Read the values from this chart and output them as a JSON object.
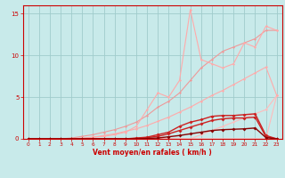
{
  "xlabel": "Vent moyen/en rafales ( km/h )",
  "x": [
    0,
    1,
    2,
    3,
    4,
    5,
    6,
    7,
    8,
    9,
    10,
    11,
    12,
    13,
    14,
    15,
    16,
    17,
    18,
    19,
    20,
    21,
    22,
    23
  ],
  "lines": [
    {
      "y": [
        0.0,
        0.0,
        0.0,
        0.0,
        0.0,
        0.0,
        0.0,
        0.0,
        0.0,
        0.0,
        0.0,
        0.0,
        0.0,
        0.0,
        0.0,
        0.0,
        0.0,
        0.0,
        0.0,
        0.0,
        0.0,
        0.0,
        0.0,
        5.2
      ],
      "color": "#ffbbbb",
      "lw": 0.8,
      "ms": 1.5
    },
    {
      "y": [
        0.0,
        0.0,
        0.0,
        0.0,
        0.0,
        0.0,
        0.0,
        0.0,
        0.0,
        0.0,
        0.0,
        0.0,
        0.0,
        0.0,
        0.0,
        0.0,
        0.5,
        1.0,
        1.5,
        2.0,
        2.5,
        3.0,
        3.5,
        5.2
      ],
      "color": "#ffbbbb",
      "lw": 0.8,
      "ms": 1.5
    },
    {
      "y": [
        0.0,
        0.0,
        0.0,
        0.0,
        0.0,
        0.0,
        0.2,
        0.4,
        0.6,
        0.9,
        1.2,
        1.6,
        2.1,
        2.6,
        3.2,
        3.8,
        4.5,
        5.2,
        5.8,
        6.5,
        7.2,
        7.9,
        8.6,
        5.2
      ],
      "color": "#ffaaaa",
      "lw": 0.8,
      "ms": 1.5
    },
    {
      "y": [
        0.0,
        0.0,
        0.0,
        0.0,
        0.1,
        0.3,
        0.5,
        0.8,
        1.1,
        1.5,
        2.0,
        2.8,
        3.8,
        4.5,
        5.5,
        7.0,
        8.5,
        9.5,
        10.5,
        11.0,
        11.5,
        12.0,
        13.0,
        13.0
      ],
      "color": "#ee9999",
      "lw": 0.8,
      "ms": 1.5
    },
    {
      "y": [
        0.0,
        0.0,
        0.0,
        0.0,
        0.0,
        0.1,
        0.2,
        0.3,
        0.5,
        0.8,
        1.5,
        3.5,
        5.5,
        5.0,
        7.0,
        15.5,
        9.5,
        9.0,
        8.5,
        9.0,
        11.5,
        11.0,
        13.5,
        13.0
      ],
      "color": "#ffaaaa",
      "lw": 0.8,
      "ms": 1.5
    },
    {
      "y": [
        0.0,
        0.0,
        0.0,
        0.0,
        0.0,
        0.0,
        0.0,
        0.0,
        0.0,
        0.0,
        0.1,
        0.2,
        0.5,
        0.8,
        1.5,
        2.0,
        2.3,
        2.7,
        2.8,
        2.8,
        2.9,
        3.0,
        0.4,
        0.0
      ],
      "color": "#cc2222",
      "lw": 1.0,
      "ms": 2.0
    },
    {
      "y": [
        0.0,
        0.0,
        0.0,
        0.0,
        0.0,
        0.0,
        0.0,
        0.0,
        0.0,
        0.0,
        0.05,
        0.15,
        0.3,
        0.6,
        1.0,
        1.4,
        1.8,
        2.2,
        2.4,
        2.5,
        2.5,
        2.6,
        0.25,
        0.0
      ],
      "color": "#cc2222",
      "lw": 1.0,
      "ms": 2.0
    },
    {
      "y": [
        0.0,
        0.0,
        0.0,
        0.0,
        0.0,
        0.0,
        0.0,
        0.0,
        0.0,
        0.0,
        0.0,
        0.05,
        0.1,
        0.25,
        0.4,
        0.6,
        0.8,
        1.0,
        1.1,
        1.15,
        1.2,
        1.3,
        0.15,
        0.0
      ],
      "color": "#880000",
      "lw": 1.0,
      "ms": 2.0
    }
  ],
  "bg_color": "#c8eaea",
  "grid_color": "#a0cccc",
  "axis_color": "#cc0000",
  "ylim": [
    0,
    16
  ],
  "xlim": [
    -0.5,
    23.5
  ],
  "yticks": [
    0,
    5,
    10,
    15
  ],
  "xticks": [
    0,
    1,
    2,
    3,
    4,
    5,
    6,
    7,
    8,
    9,
    10,
    11,
    12,
    13,
    14,
    15,
    16,
    17,
    18,
    19,
    20,
    21,
    22,
    23
  ]
}
